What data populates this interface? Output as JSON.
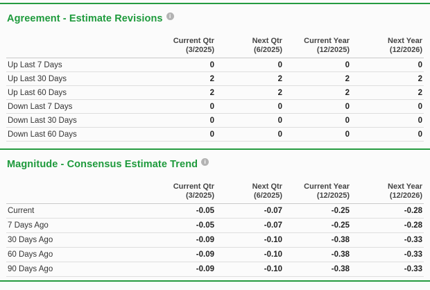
{
  "colors": {
    "accent_green": "#259b40",
    "title_green": "#1e9a3c",
    "row_border": "#dedede",
    "header_border": "#c9c9c9",
    "background": "#fbfbfb"
  },
  "icons": {
    "info": "i"
  },
  "columns": [
    {
      "label": "Current Qtr",
      "sub": "(3/2025)"
    },
    {
      "label": "Next Qtr",
      "sub": "(6/2025)"
    },
    {
      "label": "Current Year",
      "sub": "(12/2025)"
    },
    {
      "label": "Next Year",
      "sub": "(12/2026)"
    }
  ],
  "sections": [
    {
      "title": "Agreement - Estimate Revisions",
      "rows": [
        {
          "label": "Up Last 7 Days",
          "values": [
            "0",
            "0",
            "0",
            "0"
          ]
        },
        {
          "label": "Up Last 30 Days",
          "values": [
            "2",
            "2",
            "2",
            "2"
          ]
        },
        {
          "label": "Up Last 60 Days",
          "values": [
            "2",
            "2",
            "2",
            "2"
          ]
        },
        {
          "label": "Down Last 7 Days",
          "values": [
            "0",
            "0",
            "0",
            "0"
          ]
        },
        {
          "label": "Down Last 30 Days",
          "values": [
            "0",
            "0",
            "0",
            "0"
          ]
        },
        {
          "label": "Down Last 60 Days",
          "values": [
            "0",
            "0",
            "0",
            "0"
          ]
        }
      ]
    },
    {
      "title": "Magnitude - Consensus Estimate Trend",
      "rows": [
        {
          "label": "Current",
          "values": [
            "-0.05",
            "-0.07",
            "-0.25",
            "-0.28"
          ]
        },
        {
          "label": "7 Days Ago",
          "values": [
            "-0.05",
            "-0.07",
            "-0.25",
            "-0.28"
          ]
        },
        {
          "label": "30 Days Ago",
          "values": [
            "-0.09",
            "-0.10",
            "-0.38",
            "-0.33"
          ]
        },
        {
          "label": "60 Days Ago",
          "values": [
            "-0.09",
            "-0.10",
            "-0.38",
            "-0.33"
          ]
        },
        {
          "label": "90 Days Ago",
          "values": [
            "-0.09",
            "-0.10",
            "-0.38",
            "-0.33"
          ]
        }
      ]
    }
  ]
}
